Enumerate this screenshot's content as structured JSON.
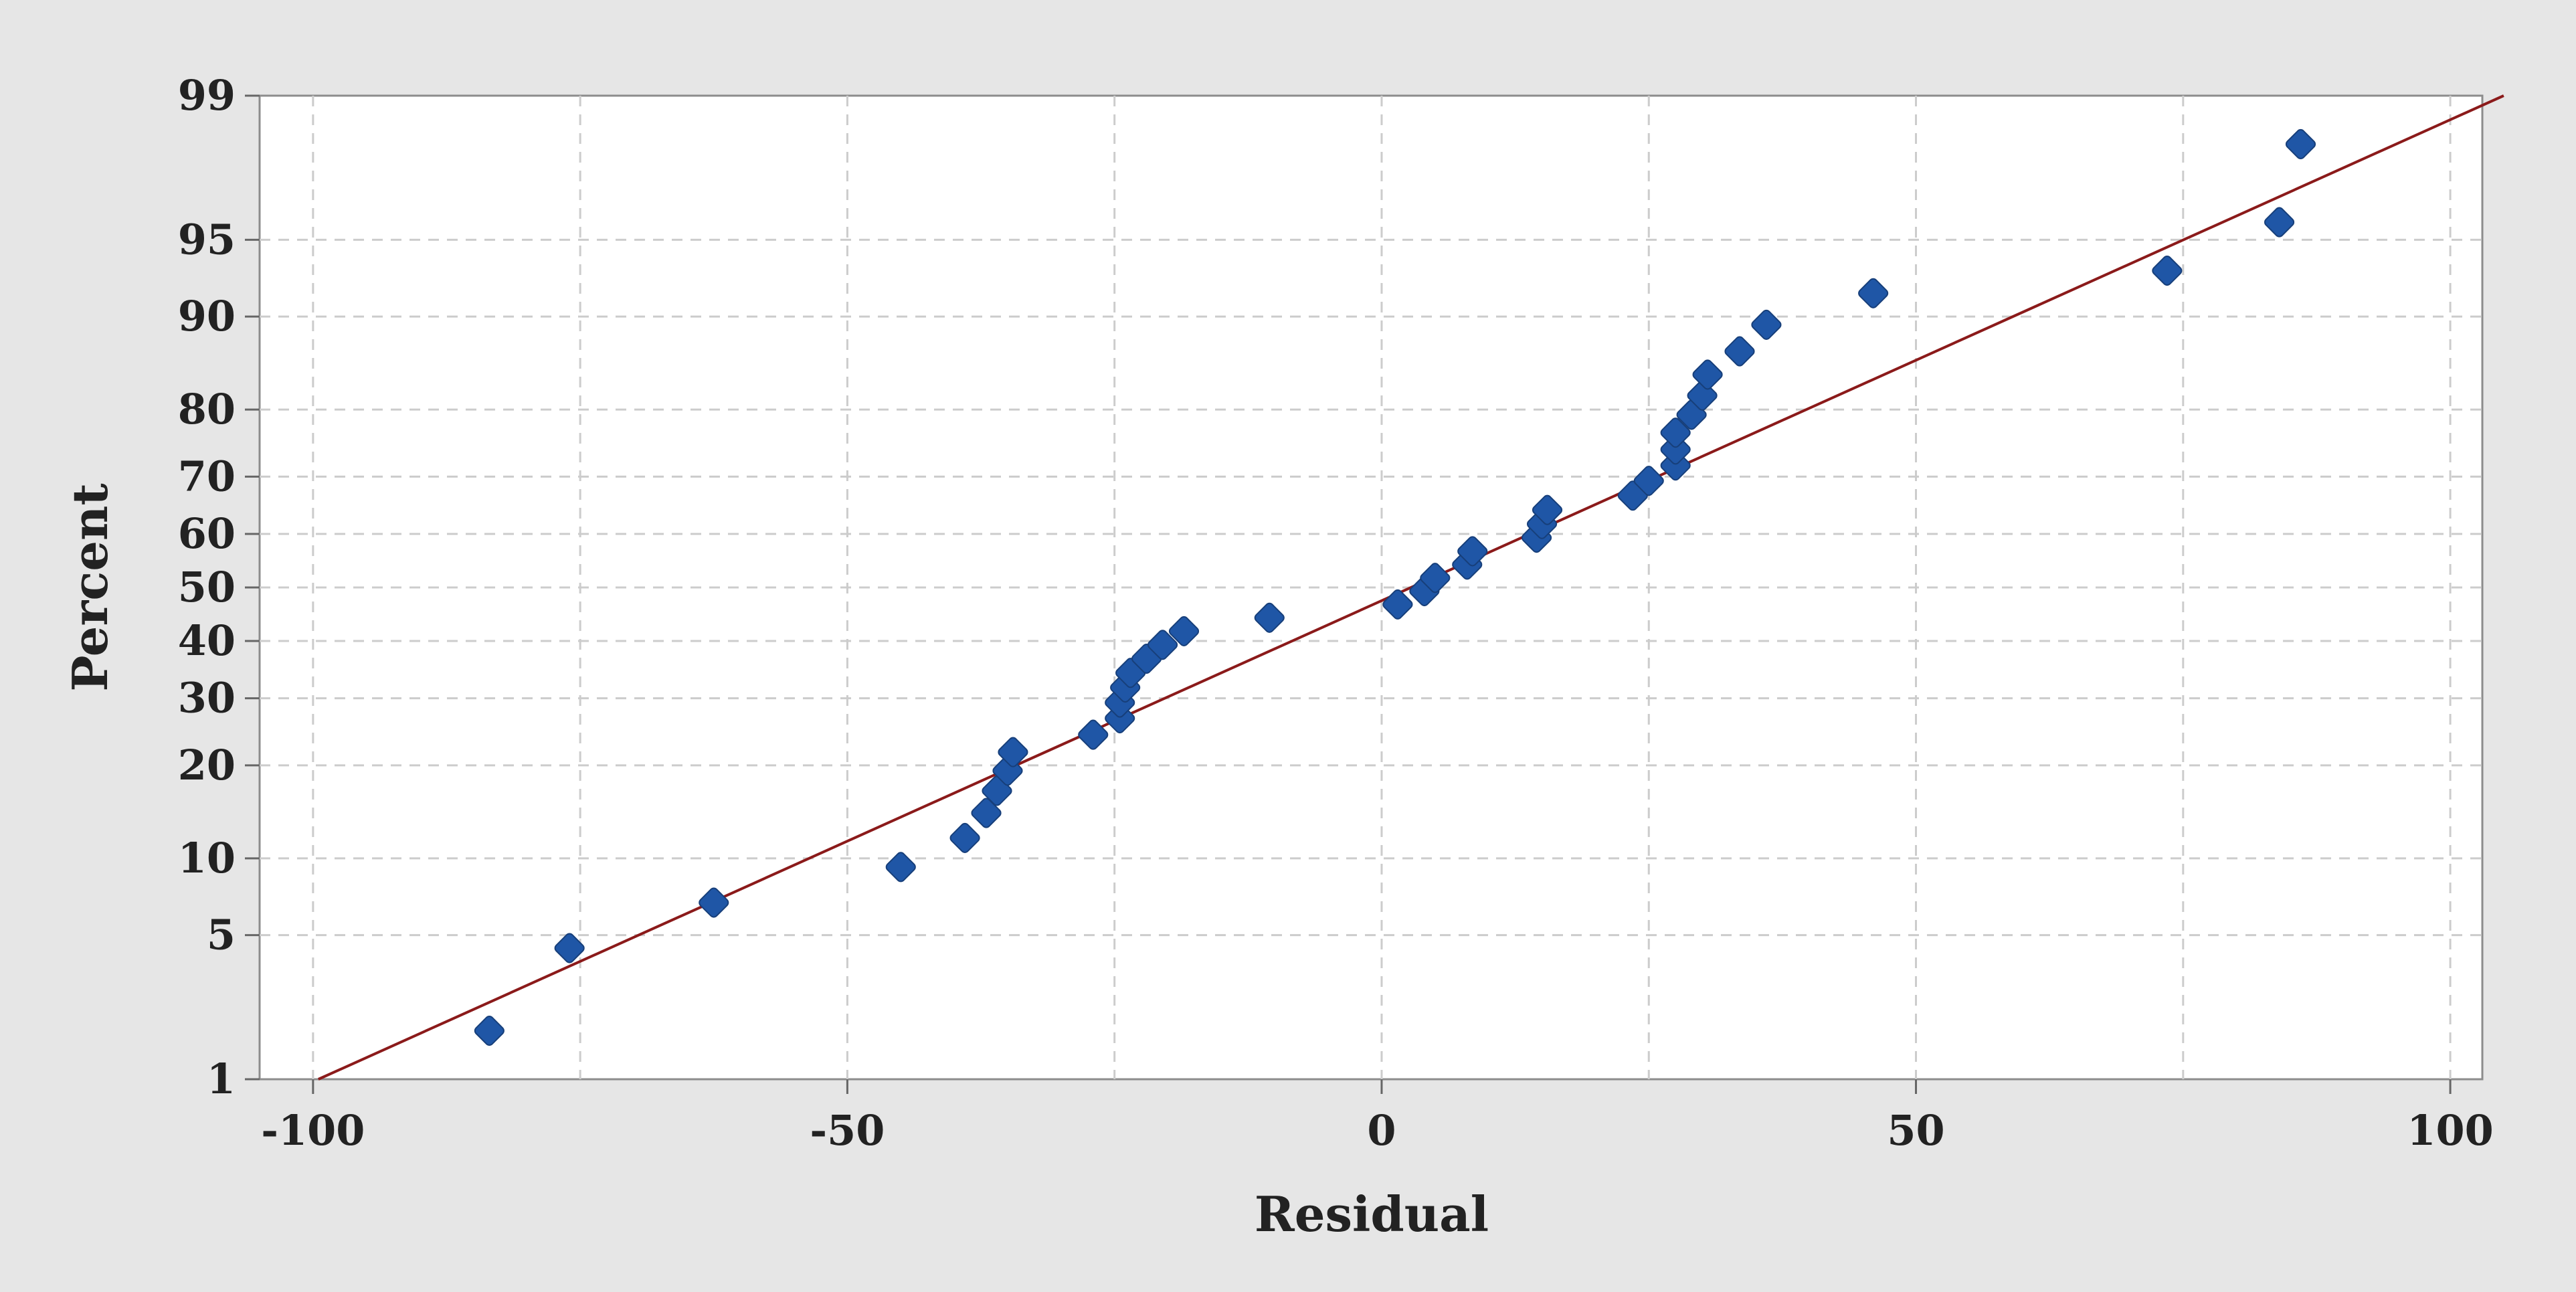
{
  "chart_data": {
    "type": "scatter",
    "subtype": "normal-probability-plot",
    "title": "",
    "xlabel": "Residual",
    "ylabel": "Percent",
    "xlim": [
      -105,
      103
    ],
    "ylim": [
      1,
      99
    ],
    "y_scale": "normal-probability",
    "x_ticks": [
      -100,
      -50,
      0,
      50,
      100
    ],
    "x_tick_labels": [
      "-100",
      "-50",
      "0",
      "50",
      "100"
    ],
    "y_ticks": [
      1,
      5,
      10,
      20,
      30,
      40,
      50,
      60,
      70,
      80,
      90,
      95,
      99
    ],
    "y_tick_labels": [
      "1",
      "5",
      "10",
      "20",
      "30",
      "40",
      "50",
      "60",
      "70",
      "80",
      "90",
      "95",
      "99"
    ],
    "grid": true,
    "background": "#e6e6e6",
    "plot_background": "#ffffff",
    "point_color": "#1f56a6",
    "line_color": "#8b1a1a",
    "grid_color": "#cccccc",
    "fit_line": {
      "x": [
        -99.5,
        105
      ],
      "y": [
        1,
        99
      ]
    },
    "series": [
      {
        "points": [
          {
            "x": -83.5,
            "y": 1.8
          },
          {
            "x": -76,
            "y": 4.4
          },
          {
            "x": -62.5,
            "y": 6.8
          },
          {
            "x": -45,
            "y": 9.3
          },
          {
            "x": -39,
            "y": 11.8
          },
          {
            "x": -37,
            "y": 14.3
          },
          {
            "x": -36,
            "y": 16.8
          },
          {
            "x": -35,
            "y": 19.3
          },
          {
            "x": -34.5,
            "y": 21.8
          },
          {
            "x": -27,
            "y": 24.3
          },
          {
            "x": -24.5,
            "y": 26.8
          },
          {
            "x": -24.5,
            "y": 29.3
          },
          {
            "x": -24,
            "y": 31.8
          },
          {
            "x": -23.5,
            "y": 34.3
          },
          {
            "x": -22,
            "y": 36.8
          },
          {
            "x": -20.5,
            "y": 39.3
          },
          {
            "x": -18.5,
            "y": 41.8
          },
          {
            "x": -10.5,
            "y": 44.3
          },
          {
            "x": 1.5,
            "y": 46.8
          },
          {
            "x": 4,
            "y": 49.3
          },
          {
            "x": 5,
            "y": 51.8
          },
          {
            "x": 8,
            "y": 54.3
          },
          {
            "x": 8.5,
            "y": 56.8
          },
          {
            "x": 14.5,
            "y": 59.3
          },
          {
            "x": 15,
            "y": 61.8
          },
          {
            "x": 15.5,
            "y": 64.3
          },
          {
            "x": 23.5,
            "y": 66.8
          },
          {
            "x": 25,
            "y": 69.3
          },
          {
            "x": 27.5,
            "y": 71.8
          },
          {
            "x": 27.5,
            "y": 74.3
          },
          {
            "x": 27.5,
            "y": 76.8
          },
          {
            "x": 29,
            "y": 79.3
          },
          {
            "x": 30,
            "y": 81.8
          },
          {
            "x": 30.5,
            "y": 84.3
          },
          {
            "x": 33.5,
            "y": 86.8
          },
          {
            "x": 36,
            "y": 89.3
          },
          {
            "x": 46,
            "y": 91.8
          },
          {
            "x": 73.5,
            "y": 93.3
          },
          {
            "x": 84,
            "y": 95.8
          },
          {
            "x": 86,
            "y": 98.2
          }
        ]
      }
    ]
  }
}
